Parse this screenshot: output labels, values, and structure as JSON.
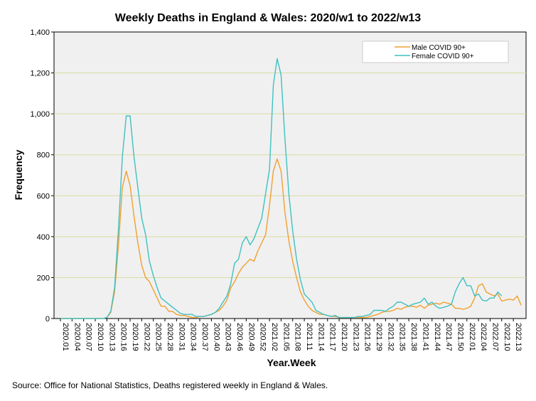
{
  "chart_data": {
    "type": "line",
    "title": "Weekly Deaths in England & Wales: 2020/w1 to 2022/w13",
    "xlabel": "Year.Week",
    "ylabel": "Frequency",
    "ylim": [
      0,
      1400
    ],
    "yticks": [
      0,
      200,
      400,
      600,
      800,
      1000,
      1200,
      1400
    ],
    "ytick_labels": [
      "0",
      "200",
      "400",
      "600",
      "800",
      "1,000",
      "1,200",
      "1,400"
    ],
    "grid": "horizontal",
    "legend_position": "top-right",
    "plot_background": "#f0f0f0",
    "x_tick_labels": [
      "2020.01",
      "2020.04",
      "2020.07",
      "2020.10",
      "2020.13",
      "2020.16",
      "2020.19",
      "2020.22",
      "2020.25",
      "2020.28",
      "2020.31",
      "2020.34",
      "2020.37",
      "2020.40",
      "2020.43",
      "2020.46",
      "2020.49",
      "2020.52",
      "2021.02",
      "2021.05",
      "2021.08",
      "2021.11",
      "2021.14",
      "2021.17",
      "2021.20",
      "2021.23",
      "2021.26",
      "2021.29",
      "2021.32",
      "2021.35",
      "2021.38",
      "2021.41",
      "2021.44",
      "2021.47",
      "2021.50",
      "2022.01",
      "2022.04",
      "2022.07",
      "2022.10",
      "2022.13"
    ],
    "series": [
      {
        "name": "Male COVID 90+",
        "color": "#f0a030",
        "values": [
          0,
          0,
          0,
          0,
          0,
          0,
          0,
          0,
          0,
          0,
          0,
          0,
          5,
          30,
          130,
          360,
          640,
          720,
          650,
          500,
          370,
          260,
          200,
          180,
          140,
          100,
          60,
          60,
          35,
          35,
          20,
          15,
          15,
          10,
          5,
          5,
          10,
          10,
          15,
          20,
          30,
          40,
          60,
          90,
          150,
          180,
          220,
          250,
          270,
          290,
          280,
          330,
          370,
          410,
          550,
          720,
          780,
          720,
          520,
          380,
          280,
          200,
          130,
          90,
          60,
          40,
          30,
          20,
          20,
          15,
          10,
          10,
          5,
          5,
          5,
          5,
          5,
          5,
          5,
          5,
          10,
          15,
          20,
          30,
          35,
          35,
          40,
          50,
          45,
          55,
          60,
          60,
          55,
          65,
          50,
          65,
          70,
          75,
          70,
          80,
          75,
          70,
          50,
          50,
          45,
          50,
          60,
          100,
          160,
          170,
          130,
          120,
          110,
          120,
          85,
          90,
          95,
          90,
          110,
          65
        ],
        "legend": "Male COVID 90+"
      },
      {
        "name": "Female COVID 90+",
        "color": "#40c0c0",
        "values": [
          0,
          0,
          0,
          0,
          0,
          0,
          0,
          0,
          0,
          0,
          0,
          0,
          5,
          35,
          150,
          440,
          790,
          990,
          990,
          790,
          640,
          490,
          410,
          280,
          210,
          150,
          100,
          85,
          70,
          55,
          40,
          25,
          20,
          20,
          20,
          10,
          10,
          10,
          15,
          20,
          30,
          50,
          80,
          110,
          170,
          270,
          290,
          370,
          400,
          360,
          390,
          440,
          490,
          610,
          730,
          1140,
          1270,
          1190,
          880,
          610,
          430,
          290,
          190,
          120,
          100,
          80,
          40,
          30,
          20,
          15,
          10,
          15,
          5,
          5,
          5,
          5,
          5,
          10,
          10,
          15,
          20,
          40,
          40,
          40,
          35,
          50,
          60,
          80,
          80,
          70,
          60,
          70,
          75,
          80,
          100,
          70,
          80,
          60,
          50,
          55,
          60,
          70,
          130,
          170,
          200,
          160,
          160,
          110,
          120,
          90,
          85,
          100,
          100,
          130,
          110
        ],
        "legend": "Female COVID 90+"
      }
    ],
    "source_note": "Source: Office for National Statistics, Deaths registered weekly in England & Wales."
  }
}
